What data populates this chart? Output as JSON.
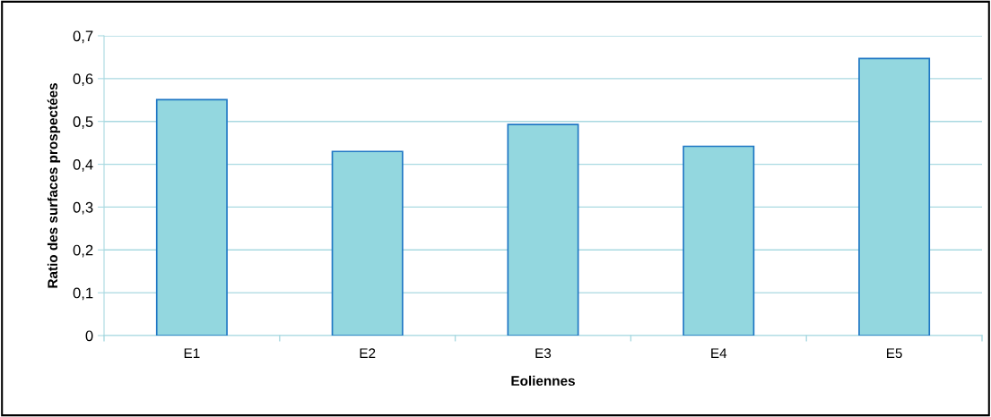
{
  "chart_data": {
    "type": "bar",
    "xlabel": "Eoliennes",
    "ylabel": "Ratio des surfaces prospectées",
    "categories": [
      "E1",
      "E2",
      "E3",
      "E4",
      "E5"
    ],
    "values": [
      0.551,
      0.43,
      0.493,
      0.442,
      0.647
    ],
    "color": "#93d7df",
    "ylim": [
      0,
      0.7
    ],
    "yticks": [
      {
        "value": 0,
        "label": "0"
      },
      {
        "value": 0.1,
        "label": "0,1"
      },
      {
        "value": 0.2,
        "label": "0,2"
      },
      {
        "value": 0.3,
        "label": "0,3"
      },
      {
        "value": 0.4,
        "label": "0,4"
      },
      {
        "value": 0.5,
        "label": "0,5"
      },
      {
        "value": 0.6,
        "label": "0,6"
      },
      {
        "value": 0.7,
        "label": "0,7"
      }
    ],
    "grid": "y"
  }
}
